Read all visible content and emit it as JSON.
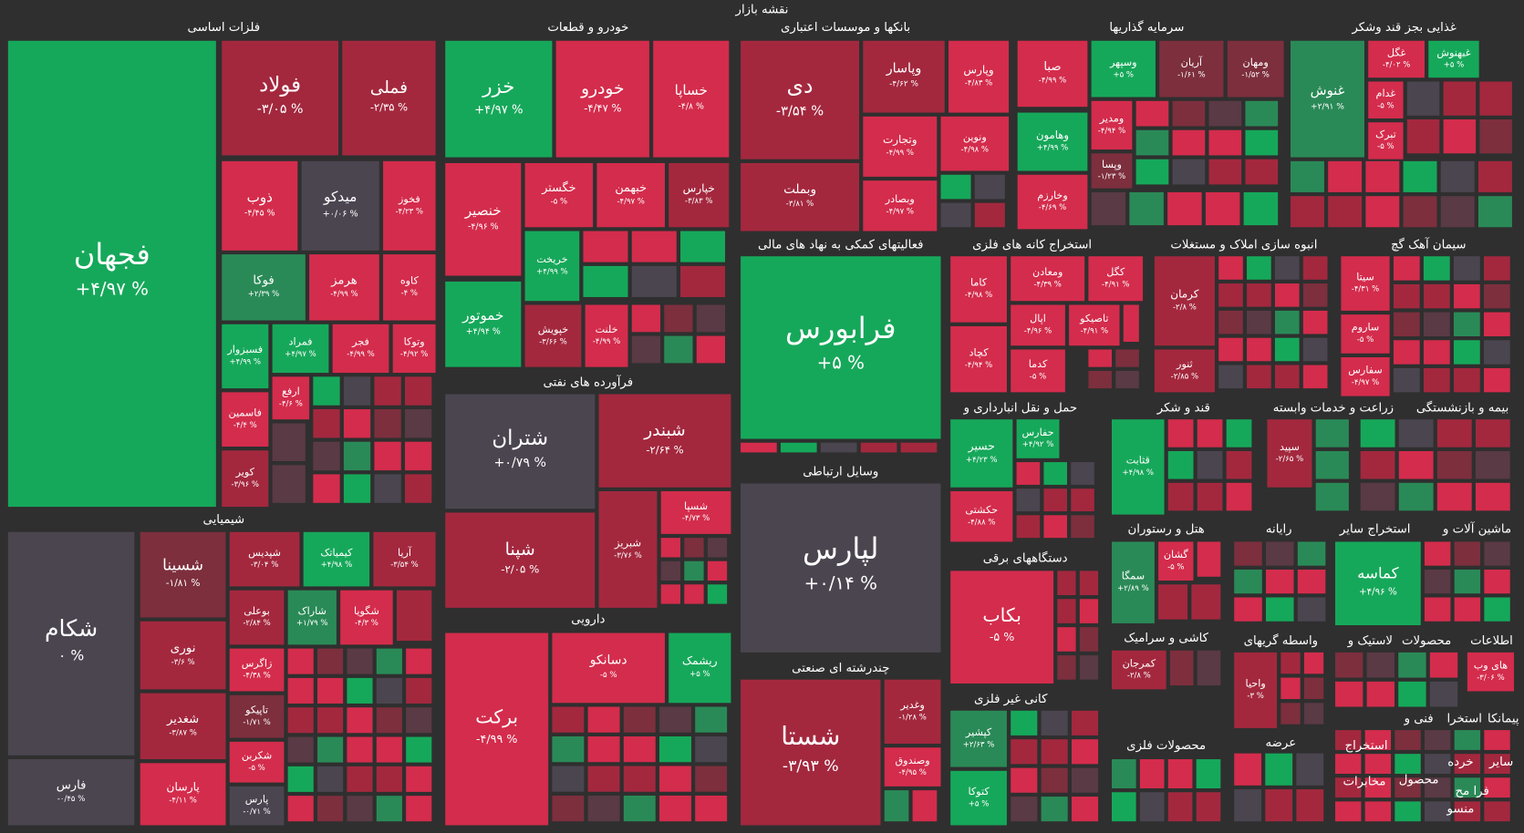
{
  "title": "نقشه بازار",
  "sectors": [
    {
      "label": "فلزات اساسی",
      "tiles": [
        {
          "name": "فجهان",
          "change": "+۴/۹۷ %",
          "color": "#16a85a"
        },
        {
          "name": "فولاد",
          "change": "-۳/۰۵ %",
          "color": "#a3283e"
        },
        {
          "name": "فملی",
          "change": "-۲/۳۵ %",
          "color": "#a3283e"
        },
        {
          "name": "فخوز",
          "change": "-۴/۲۳ %",
          "color": "#d42c4c"
        },
        {
          "name": "میدکو",
          "change": "+۰/۰۶ %",
          "color": "#4b4550"
        },
        {
          "name": "ذوب",
          "change": "-۴/۴۵ %",
          "color": "#d42c4c"
        },
        {
          "name": "کاوه",
          "change": "-۴ %",
          "color": "#d42c4c"
        },
        {
          "name": "هرمز",
          "change": "-۴/۹۹ %",
          "color": "#d42c4c"
        },
        {
          "name": "فوکا",
          "change": "+۲/۳۹ %",
          "color": "#2a8a57"
        },
        {
          "name": "وتوکا",
          "change": "-۴/۹۲ %",
          "color": "#d42c4c"
        },
        {
          "name": "فجر",
          "change": "-۴/۹۹ %",
          "color": "#d42c4c"
        },
        {
          "name": "فمراد",
          "change": "+۴/۹۷ %",
          "color": "#16a85a"
        },
        {
          "name": "فسبزوار",
          "change": "+۴/۹۹ %",
          "color": "#16a85a"
        },
        {
          "name": "ارفع",
          "change": "-۴/۶ %",
          "color": "#d42c4c"
        },
        {
          "name": "فاسمین",
          "change": "-۴/۴ %",
          "color": "#d42c4c"
        },
        {
          "name": "کویر",
          "change": "-۳/۹۶ %",
          "color": "#a3283e"
        }
      ]
    },
    {
      "label": "خودرو و قطعات",
      "tiles": [
        {
          "name": "خزر",
          "change": "+۴/۹۷ %",
          "color": "#16a85a"
        },
        {
          "name": "خودرو",
          "change": "-۴/۴۷ %",
          "color": "#d42c4c"
        },
        {
          "name": "خساپا",
          "change": "-۴/۸ %",
          "color": "#d42c4c"
        },
        {
          "name": "خنصیر",
          "change": "-۴/۹۶ %",
          "color": "#d42c4c"
        },
        {
          "name": "خگستر",
          "change": "-۵ %",
          "color": "#d42c4c"
        },
        {
          "name": "خبهمن",
          "change": "-۴/۹۷ %",
          "color": "#d42c4c"
        },
        {
          "name": "خپارس",
          "change": "-۳/۸۳ %",
          "color": "#a3283e"
        },
        {
          "name": "خریخت",
          "change": "+۴/۹۹ %",
          "color": "#16a85a"
        },
        {
          "name": "خموتور",
          "change": "+۴/۹۴ %",
          "color": "#16a85a"
        },
        {
          "name": "خپویش",
          "change": "-۳/۶۶ %",
          "color": "#a3283e"
        },
        {
          "name": "خلنت",
          "change": "-۴/۹۹ %",
          "color": "#d42c4c"
        }
      ]
    },
    {
      "label": "بانکها و موسسات اعتباری",
      "tiles": [
        {
          "name": "دی",
          "change": "-۳/۵۴ %",
          "color": "#a3283e"
        },
        {
          "name": "وپاسار",
          "change": "-۴/۶۲ %",
          "color": "#a3283e"
        },
        {
          "name": "وپارس",
          "change": "-۴/۸۳ %",
          "color": "#d42c4c"
        },
        {
          "name": "وتجارت",
          "change": "-۴/۹۹ %",
          "color": "#d42c4c"
        },
        {
          "name": "ونوین",
          "change": "-۴/۹۸ %",
          "color": "#d42c4c"
        },
        {
          "name": "وبملت",
          "change": "-۳/۸۱ %",
          "color": "#a3283e"
        },
        {
          "name": "وبصادر",
          "change": "-۴/۹۷ %",
          "color": "#d42c4c"
        }
      ]
    },
    {
      "label": "سرمایه گذاریها",
      "tiles": [
        {
          "name": "صبا",
          "change": "-۴/۹۹ %",
          "color": "#d42c4c"
        },
        {
          "name": "وسپهر",
          "change": "+۵ %",
          "color": "#16a85a"
        },
        {
          "name": "آریان",
          "change": "-۱/۶۱ %",
          "color": "#7d2f3d"
        },
        {
          "name": "ومهان",
          "change": "-۱/۵۲ %",
          "color": "#7d2f3d"
        },
        {
          "name": "وهامون",
          "change": "+۴/۹۹ %",
          "color": "#16a85a"
        },
        {
          "name": "ومدیر",
          "change": "-۴/۹۴ %",
          "color": "#d42c4c"
        },
        {
          "name": "وپسا",
          "change": "-۱/۲۳ %",
          "color": "#7d2f3d"
        },
        {
          "name": "وخارزم",
          "change": "-۴/۶۹ %",
          "color": "#d42c4c"
        }
      ]
    },
    {
      "label": "غذایی بجز قند وشکر",
      "tiles": [
        {
          "name": "غنوش",
          "change": "+۲/۹۱ %",
          "color": "#2a8a57"
        },
        {
          "name": "غگل",
          "change": "-۴/۰۲ %",
          "color": "#d42c4c"
        },
        {
          "name": "غبهنوش",
          "change": "+۵ %",
          "color": "#16a85a"
        },
        {
          "name": "غدام",
          "change": "-۵ %",
          "color": "#d42c4c"
        },
        {
          "name": "تبرک",
          "change": "-۵ %",
          "color": "#d42c4c"
        }
      ]
    },
    {
      "label": "فعالیتهای کمکی به نهاد های مالی",
      "tiles": [
        {
          "name": "فرابورس",
          "change": "+۵ %",
          "color": "#16a85a"
        }
      ]
    },
    {
      "label": "وسایل ارتباطی",
      "tiles": [
        {
          "name": "لپارس",
          "change": "+۰/۱۴ %",
          "color": "#4b4550"
        }
      ]
    },
    {
      "label": "چندرشته ای صنعتی",
      "tiles": [
        {
          "name": "شستا",
          "change": "-۳/۹۳ %",
          "color": "#a3283e"
        },
        {
          "name": "وغدیر",
          "change": "-۱/۲۸ %",
          "color": "#a3283e"
        },
        {
          "name": "وصندوق",
          "change": "-۴/۹۵ %",
          "color": "#d42c4c"
        }
      ]
    },
    {
      "label": "فرآورده های نفتی",
      "tiles": [
        {
          "name": "شتران",
          "change": "+۰/۷۹ %",
          "color": "#4b4550"
        },
        {
          "name": "شبندر",
          "change": "-۲/۶۴ %",
          "color": "#a3283e"
        },
        {
          "name": "شپنا",
          "change": "-۲/۰۵ %",
          "color": "#a3283e"
        },
        {
          "name": "شبریز",
          "change": "-۳/۷۶ %",
          "color": "#a3283e"
        },
        {
          "name": "شسپا",
          "change": "-۴/۷۳ %",
          "color": "#d42c4c"
        }
      ]
    },
    {
      "label": "دارویی",
      "tiles": [
        {
          "name": "برکت",
          "change": "-۴/۹۹ %",
          "color": "#d42c4c"
        },
        {
          "name": "دسانکو",
          "change": "-۵ %",
          "color": "#d42c4c"
        },
        {
          "name": "ریشمک",
          "change": "+۵ %",
          "color": "#16a85a"
        }
      ]
    },
    {
      "label": "شیمیایی",
      "tiles": [
        {
          "name": "شکام",
          "change": "۰ %",
          "color": "#4b4550"
        },
        {
          "name": "فارس",
          "change": "-۰/۴۵ %",
          "color": "#4b4550"
        },
        {
          "name": "شسینا",
          "change": "-۱/۸۱ %",
          "color": "#7d2f3d"
        },
        {
          "name": "شپدیس",
          "change": "-۳/۰۴ %",
          "color": "#a3283e"
        },
        {
          "name": "کیمیاتک",
          "change": "+۴/۹۸ %",
          "color": "#16a85a"
        },
        {
          "name": "آریا",
          "change": "-۳/۵۴ %",
          "color": "#a3283e"
        },
        {
          "name": "نوری",
          "change": "-۳/۶ %",
          "color": "#a3283e"
        },
        {
          "name": "بوعلی",
          "change": "-۲/۸۴ %",
          "color": "#a3283e"
        },
        {
          "name": "شاراک",
          "change": "+۱/۷۹ %",
          "color": "#2a8a57"
        },
        {
          "name": "شگویا",
          "change": "-۴/۳ %",
          "color": "#d42c4c"
        },
        {
          "name": "شغدیر",
          "change": "-۳/۸۷ %",
          "color": "#a3283e"
        },
        {
          "name": "زاگرس",
          "change": "-۴/۳۸ %",
          "color": "#d42c4c"
        },
        {
          "name": "تاپیکو",
          "change": "-۱/۷۱ %",
          "color": "#7d2f3d"
        },
        {
          "name": "پارسان",
          "change": "-۴/۱۱ %",
          "color": "#d42c4c"
        },
        {
          "name": "شکربن",
          "change": "-۵ %",
          "color": "#d42c4c"
        },
        {
          "name": "پارس",
          "change": "-۰/۷۱ %",
          "color": "#4b4550"
        }
      ]
    },
    {
      "label": "استخراج کانه های فلزی",
      "tiles": [
        {
          "name": "کاما",
          "change": "-۴/۹۸ %",
          "color": "#d42c4c"
        },
        {
          "name": "ومعادن",
          "change": "-۴/۳۹ %",
          "color": "#d42c4c"
        },
        {
          "name": "کگل",
          "change": "-۴/۹۱ %",
          "color": "#d42c4c"
        },
        {
          "name": "اپال",
          "change": "-۴/۹۶ %",
          "color": "#d42c4c"
        },
        {
          "name": "تاصیکو",
          "change": "-۴/۹۱ %",
          "color": "#d42c4c"
        },
        {
          "name": "کچاد",
          "change": "-۴/۹۴ %",
          "color": "#d42c4c"
        },
        {
          "name": "کدما",
          "change": "-۵ %",
          "color": "#d42c4c"
        }
      ]
    },
    {
      "label": "انبوه سازی املاک و مستغلات",
      "tiles": [
        {
          "name": "کرمان",
          "change": "-۲/۸ %",
          "color": "#a3283e"
        },
        {
          "name": "ثنور",
          "change": "-۲/۸۵ %",
          "color": "#a3283e"
        }
      ]
    },
    {
      "label": "سیمان آهک گچ",
      "tiles": [
        {
          "name": "سیتا",
          "change": "-۴/۳۱ %",
          "color": "#d42c4c"
        },
        {
          "name": "ساروم",
          "change": "-۵ %",
          "color": "#d42c4c"
        },
        {
          "name": "سفارس",
          "change": "-۴/۹۷ %",
          "color": "#d42c4c"
        }
      ]
    },
    {
      "label": "حمل و نقل انبارداری و",
      "tiles": [
        {
          "name": "حسیر",
          "change": "+۴/۲۳ %",
          "color": "#16a85a"
        },
        {
          "name": "حفارس",
          "change": "+۴/۹۲ %",
          "color": "#16a85a"
        },
        {
          "name": "حکشتی",
          "change": "-۴/۸۸ %",
          "color": "#d42c4c"
        }
      ]
    },
    {
      "label": "قند و شکر",
      "tiles": [
        {
          "name": "قثابت",
          "change": "+۴/۹۸ %",
          "color": "#16a85a"
        }
      ]
    },
    {
      "label": "زراعت و خدمات وابسته",
      "tiles": [
        {
          "name": "سپید",
          "change": "-۲/۶۵ %",
          "color": "#a3283e"
        }
      ]
    },
    {
      "label": "بیمه و بازنشستگی",
      "tiles": []
    },
    {
      "label": "دستگاههای برقی",
      "tiles": [
        {
          "name": "بکاب",
          "change": "-۵ %",
          "color": "#d42c4c"
        }
      ]
    },
    {
      "label": "کانی غیر فلزی",
      "tiles": [
        {
          "name": "کپشیر",
          "change": "+۲/۶۳ %",
          "color": "#2a8a57"
        },
        {
          "name": "کتوکا",
          "change": "+۵ %",
          "color": "#16a85a"
        }
      ]
    },
    {
      "label": "هتل و رستوران",
      "tiles": [
        {
          "name": "سمگا",
          "change": "+۲/۸۹ %",
          "color": "#2a8a57"
        },
        {
          "name": "گشان",
          "change": "-۵ %",
          "color": "#d42c4c"
        }
      ]
    },
    {
      "label": "کاشی و سرامیک",
      "tiles": [
        {
          "name": "کمرجان",
          "change": "-۲/۸ %",
          "color": "#a3283e"
        }
      ]
    },
    {
      "label": "محصولات فلزی",
      "tiles": []
    },
    {
      "label": "رایانه",
      "tiles": []
    },
    {
      "label": "استخراج سایر",
      "tiles": [
        {
          "name": "کماسه",
          "change": "+۴/۹۶ %",
          "color": "#16a85a"
        }
      ]
    },
    {
      "label": "ماشین آلات و",
      "tiles": []
    },
    {
      "label": "واسطه گریهای",
      "tiles": [
        {
          "name": "واحیا",
          "change": "-۳ %",
          "color": "#a3283e"
        }
      ]
    },
    {
      "label": "عرضه",
      "tiles": []
    },
    {
      "label": "لاستیک و",
      "tiles": []
    },
    {
      "label": "محصولات",
      "tiles": []
    },
    {
      "label": "اطلاعات",
      "tiles": [
        {
          "name": "های وب",
          "change": "-۳/۰۶ %",
          "color": "#d42c4c"
        }
      ]
    },
    {
      "label": "فنی و",
      "tiles": []
    },
    {
      "label": "استخرا",
      "tiles": []
    },
    {
      "label": "پیمانکا",
      "tiles": []
    },
    {
      "label": "استخراج",
      "tiles": []
    },
    {
      "label": "سایر",
      "tiles": []
    },
    {
      "label": "خرده",
      "tiles": []
    },
    {
      "label": "مخابرات",
      "tiles": []
    },
    {
      "label": "محصول",
      "tiles": []
    },
    {
      "label": "فرا مح",
      "tiles": []
    },
    {
      "label": "منسو",
      "tiles": []
    }
  ]
}
